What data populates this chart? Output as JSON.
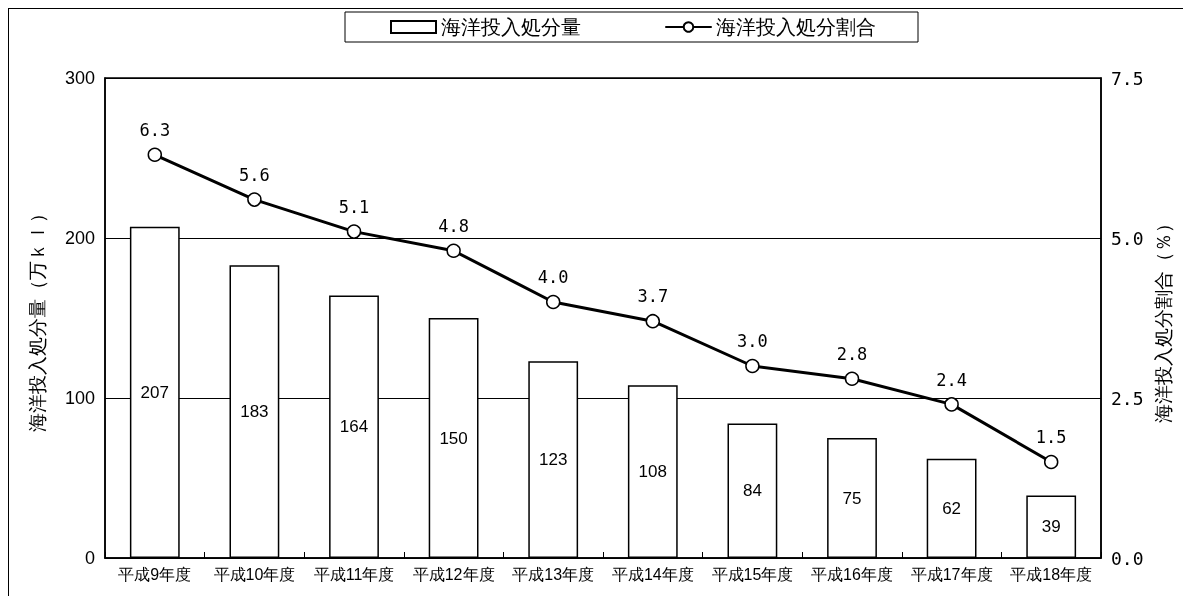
{
  "chart_data": {
    "type": "bar",
    "ylabel": "海洋投入処分量（万ｋｌ）",
    "y2label": "海洋投入処分割合（％）",
    "categories": [
      "平成9年度",
      "平成10年度",
      "平成11年度",
      "平成12年度",
      "平成13年度",
      "平成14年度",
      "平成15年度",
      "平成16年度",
      "平成17年度",
      "平成18年度"
    ],
    "series": [
      {
        "name": "海洋投入処分量",
        "color": "#ffffff",
        "values": [
          207,
          183,
          164,
          150,
          123,
          108,
          84,
          75,
          62,
          39
        ],
        "value_labels": [
          "207",
          "183",
          "164",
          "150",
          "123",
          "108",
          "84",
          "75",
          "62",
          "39"
        ]
      },
      {
        "name": "海洋投入処分割合",
        "type": "line",
        "axis": "y2",
        "color": "#000000",
        "values": [
          6.3,
          5.6,
          5.1,
          4.8,
          4.0,
          3.7,
          3.0,
          2.8,
          2.4,
          1.5
        ],
        "value_labels": [
          "6.3",
          "5.6",
          "5.1",
          "4.8",
          "4.0",
          "3.7",
          "3.0",
          "2.8",
          "2.4",
          "1.5"
        ]
      }
    ],
    "ylim": [
      0,
      300
    ],
    "yticks": [
      0,
      100,
      200,
      300
    ],
    "y2lim": [
      0,
      7.5
    ],
    "y2ticks": [
      {
        "value": 0,
        "label": "0.0"
      },
      2.5,
      {
        "value": 5,
        "label": "5.0"
      },
      7.5
    ],
    "grid": "y",
    "legend": "top",
    "marker": "circle",
    "line_style": "solid"
  }
}
